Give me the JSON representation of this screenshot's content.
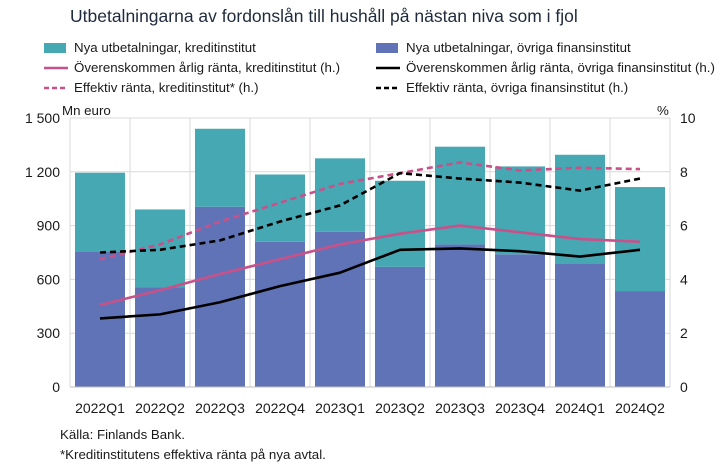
{
  "title": "Utbetalningarna av fordonslån till hushåll på nästan niva som i fjol",
  "source": "Källa: Finlands Bank.",
  "footnote": "*Kreditinstitutens effektiva ränta på nya avtal.",
  "colors": {
    "teal": "#45a8b3",
    "blue": "#6073b6",
    "magenta": "#c8518a",
    "magenta_dashed": "#c8518a",
    "black": "#000000",
    "grid": "#d9d9d9"
  },
  "chart_data": {
    "type": "bar",
    "stacked": true,
    "categories": [
      "2022Q1",
      "2022Q2",
      "2022Q3",
      "2022Q4",
      "2023Q1",
      "2023Q2",
      "2023Q3",
      "2023Q4",
      "2024Q1",
      "2024Q2"
    ],
    "left_axis": {
      "label": "Mn euro",
      "ylim": [
        0,
        1500
      ],
      "ticks": [
        "0",
        "300",
        "600",
        "900",
        "1 200",
        "1 500"
      ],
      "tick_values": [
        0,
        300,
        600,
        900,
        1200,
        1500
      ]
    },
    "right_axis": {
      "label": "%",
      "ylim": [
        0,
        10
      ],
      "ticks": [
        "0",
        "2",
        "4",
        "6",
        "8",
        "10"
      ],
      "tick_values": [
        0,
        2,
        4,
        6,
        8,
        10
      ]
    },
    "grid": true,
    "legend_position": "top",
    "bar_series": [
      {
        "name": "Nya utbetalningar, övriga finansinstitut",
        "color": "#6073b6",
        "values": [
          755,
          555,
          1005,
          810,
          865,
          670,
          795,
          740,
          690,
          535
        ]
      },
      {
        "name": "Nya utbetalningar, kreditinstitut",
        "color": "#45a8b3",
        "values": [
          440,
          435,
          435,
          375,
          410,
          480,
          545,
          490,
          605,
          580
        ]
      }
    ],
    "line_series": [
      {
        "name": "Överenskommen årlig ränta, kreditinstitut (h.)",
        "color": "#c8518a",
        "dashed": false,
        "values": [
          3.05,
          3.6,
          4.2,
          4.75,
          5.3,
          5.7,
          6.0,
          5.75,
          5.5,
          5.4
        ]
      },
      {
        "name": "Överenskommen årlig ränta, övriga finansinstitut (h.)",
        "color": "#000000",
        "dashed": false,
        "values": [
          2.55,
          2.7,
          3.15,
          3.75,
          4.25,
          5.1,
          5.15,
          5.05,
          4.85,
          5.1
        ]
      },
      {
        "name": "Effektiv ränta, kreditinstitut* (h.)",
        "color": "#c8518a",
        "dashed": true,
        "values": [
          4.75,
          5.3,
          6.15,
          6.85,
          7.55,
          7.95,
          8.35,
          8.05,
          8.15,
          8.1
        ]
      },
      {
        "name": "Effektiv ränta, övriga finansinstitut (h.)",
        "color": "#000000",
        "dashed": true,
        "values": [
          5.0,
          5.1,
          5.45,
          6.15,
          6.75,
          7.95,
          7.75,
          7.6,
          7.3,
          7.75
        ]
      }
    ]
  }
}
